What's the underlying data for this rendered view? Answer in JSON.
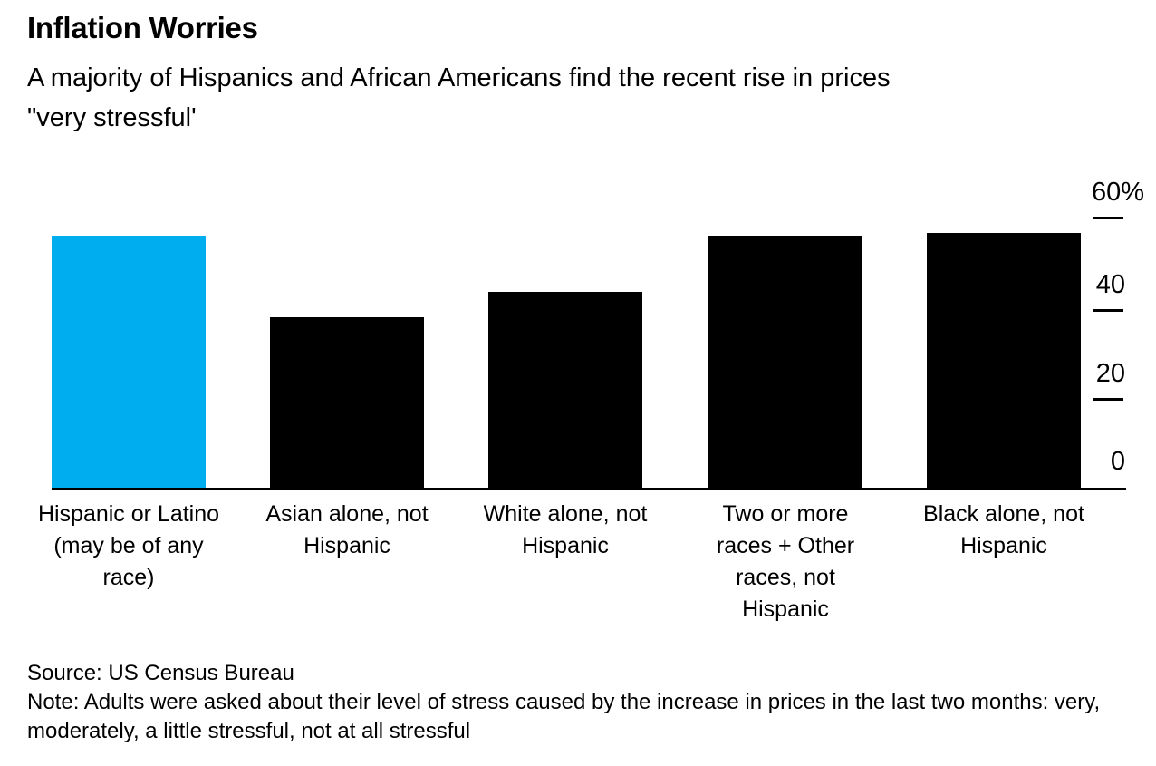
{
  "header": {
    "title": "Inflation Worries",
    "subtitle": "A majority of Hispanics and African Americans find the recent rise in prices\n\"very stressful'"
  },
  "chart_data": {
    "type": "bar",
    "title": "Inflation Worries",
    "subtitle": "A majority of Hispanics and African Americans find the recent rise in prices \"very stressful'",
    "categories": [
      "Hispanic or Latino (may be of any race)",
      "Asian alone, not Hispanic",
      "White alone, not Hispanic",
      "Two or more races + Other races, not Hispanic",
      "Black alone, not Hispanic"
    ],
    "category_labels_wrapped": [
      "Hispanic or Latino\n(may be of any\nrace)",
      "Asian alone, not\nHispanic",
      "White alone, not\nHispanic",
      "Two or more\nraces + Other\nraces, not\nHispanic",
      "Black alone, not\nHispanic"
    ],
    "values": [
      56,
      38,
      43.5,
      56,
      56.5
    ],
    "unit": "%",
    "bar_colors": [
      "#00adef",
      "#000000",
      "#000000",
      "#000000",
      "#000000"
    ],
    "ylim": [
      0,
      60
    ],
    "yticks": [
      0,
      20,
      40,
      60
    ],
    "ytick_labels": [
      "0",
      "20",
      "40",
      "60%"
    ],
    "y_axis_side": "right",
    "grid": false,
    "legend": false
  },
  "footer": {
    "source": "Source: US Census Bureau",
    "note": "Note: Adults were asked about their level of stress caused by the increase in prices in the last two months: very, moderately, a little stressful, not at all stressful"
  },
  "colors": {
    "accent_blue": "#00adef",
    "bar_black": "#000000",
    "text": "#000000",
    "background": "#ffffff"
  }
}
